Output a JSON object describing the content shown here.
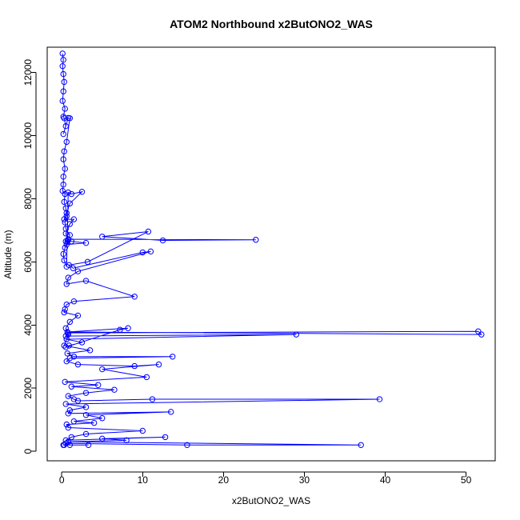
{
  "chart_data": {
    "type": "line",
    "title": "ATOM2 Northbound x2ButONO2_WAS",
    "xlabel": "x2ButONO2_WAS",
    "ylabel": "Altitude (m)",
    "xlim": [
      -1.8,
      53.6
    ],
    "ylim": [
      -300,
      12800
    ],
    "x_ticks": [
      0,
      10,
      20,
      30,
      40,
      50
    ],
    "y_ticks": [
      0,
      2000,
      4000,
      6000,
      8000,
      10000,
      12000
    ],
    "x_tick_labels": [
      "0",
      "10",
      "20",
      "30",
      "40",
      "50"
    ],
    "y_tick_labels": [
      "0",
      "2000",
      "4000",
      "6000",
      "8000",
      "10000",
      "12000"
    ],
    "grid": false,
    "legend": "none",
    "series": [
      {
        "color": "#0000ff",
        "marker": "open-circle",
        "x": [
          0.1,
          0.2,
          0.1,
          0.2,
          0.3,
          0.2,
          0.1,
          0.4,
          0.2,
          0.3,
          0.5,
          0.2,
          0.8,
          1.0,
          0.6,
          0.3,
          0.2,
          0.4,
          0.2,
          0.2,
          0.1,
          0.4,
          0.3,
          0.5,
          0.6,
          0.4,
          0.5,
          1.0,
          0.7,
          0.4,
          0.2,
          0.3,
          0.6,
          0.8,
          1.2,
          2.5,
          1.0,
          0.6,
          0.3,
          1.5,
          1.0,
          0.5,
          0.8,
          0.6,
          3.0,
          1.2,
          0.5,
          0.8,
          24.0,
          12.5,
          5.0,
          10.7,
          3.2,
          0.9,
          1.4,
          10.0,
          11.0,
          2.0,
          0.8,
          0.6,
          3.0,
          9.0,
          1.5,
          0.6,
          0.4,
          0.3,
          2.0,
          1.0,
          0.5,
          0.8,
          0.6,
          2.5,
          0.9,
          0.5,
          7.2,
          8.2,
          0.7,
          51.9,
          51.5,
          0.8,
          0.5,
          29.0,
          0.6,
          0.3,
          3.5,
          0.7,
          1.5,
          13.7,
          1.0,
          0.6,
          2.0,
          9.0,
          12.0,
          5.0,
          10.5,
          0.4,
          4.5,
          1.2,
          6.5,
          3.0,
          0.8,
          1.5,
          2.0,
          11.2,
          39.3,
          0.5,
          3.0,
          1.0,
          0.8,
          13.5,
          3.0,
          5.0,
          1.5,
          4.0,
          0.6,
          0.8,
          10.0,
          3.0,
          1.2,
          0.5,
          12.8,
          5.0,
          8.0,
          0.8,
          37.0,
          15.5,
          0.5,
          0.3,
          0.2,
          1.0,
          3.3
        ],
        "y": [
          12600,
          12400,
          12200,
          11950,
          11700,
          11400,
          11100,
          10850,
          10600,
          10550,
          10300,
          10050,
          10560,
          10550,
          9800,
          9500,
          9250,
          8950,
          8700,
          8450,
          8250,
          8150,
          7900,
          7700,
          7450,
          7250,
          7050,
          6850,
          6650,
          6450,
          6250,
          6050,
          5850,
          8200,
          8150,
          8220,
          7850,
          7550,
          7350,
          7350,
          7200,
          6900,
          6700,
          6550,
          6600,
          6650,
          6650,
          6720,
          6700,
          6680,
          6800,
          6960,
          6000,
          5900,
          5800,
          6300,
          6330,
          5700,
          5500,
          5300,
          5400,
          4900,
          4750,
          4650,
          4500,
          4400,
          4300,
          4100,
          3900,
          3700,
          3550,
          3450,
          3350,
          3300,
          3850,
          3900,
          3780,
          3700,
          3800,
          3750,
          3650,
          3700,
          3550,
          3350,
          3200,
          3100,
          3000,
          3000,
          2950,
          2850,
          2750,
          2700,
          2750,
          2600,
          2350,
          2200,
          2100,
          2050,
          1950,
          1850,
          1750,
          1650,
          1600,
          1650,
          1650,
          1500,
          1400,
          1300,
          1200,
          1250,
          1150,
          1050,
          950,
          900,
          850,
          750,
          650,
          550,
          450,
          350,
          450,
          400,
          350,
          300,
          200,
          200,
          250,
          200,
          200,
          200,
          200
        ]
      }
    ]
  }
}
